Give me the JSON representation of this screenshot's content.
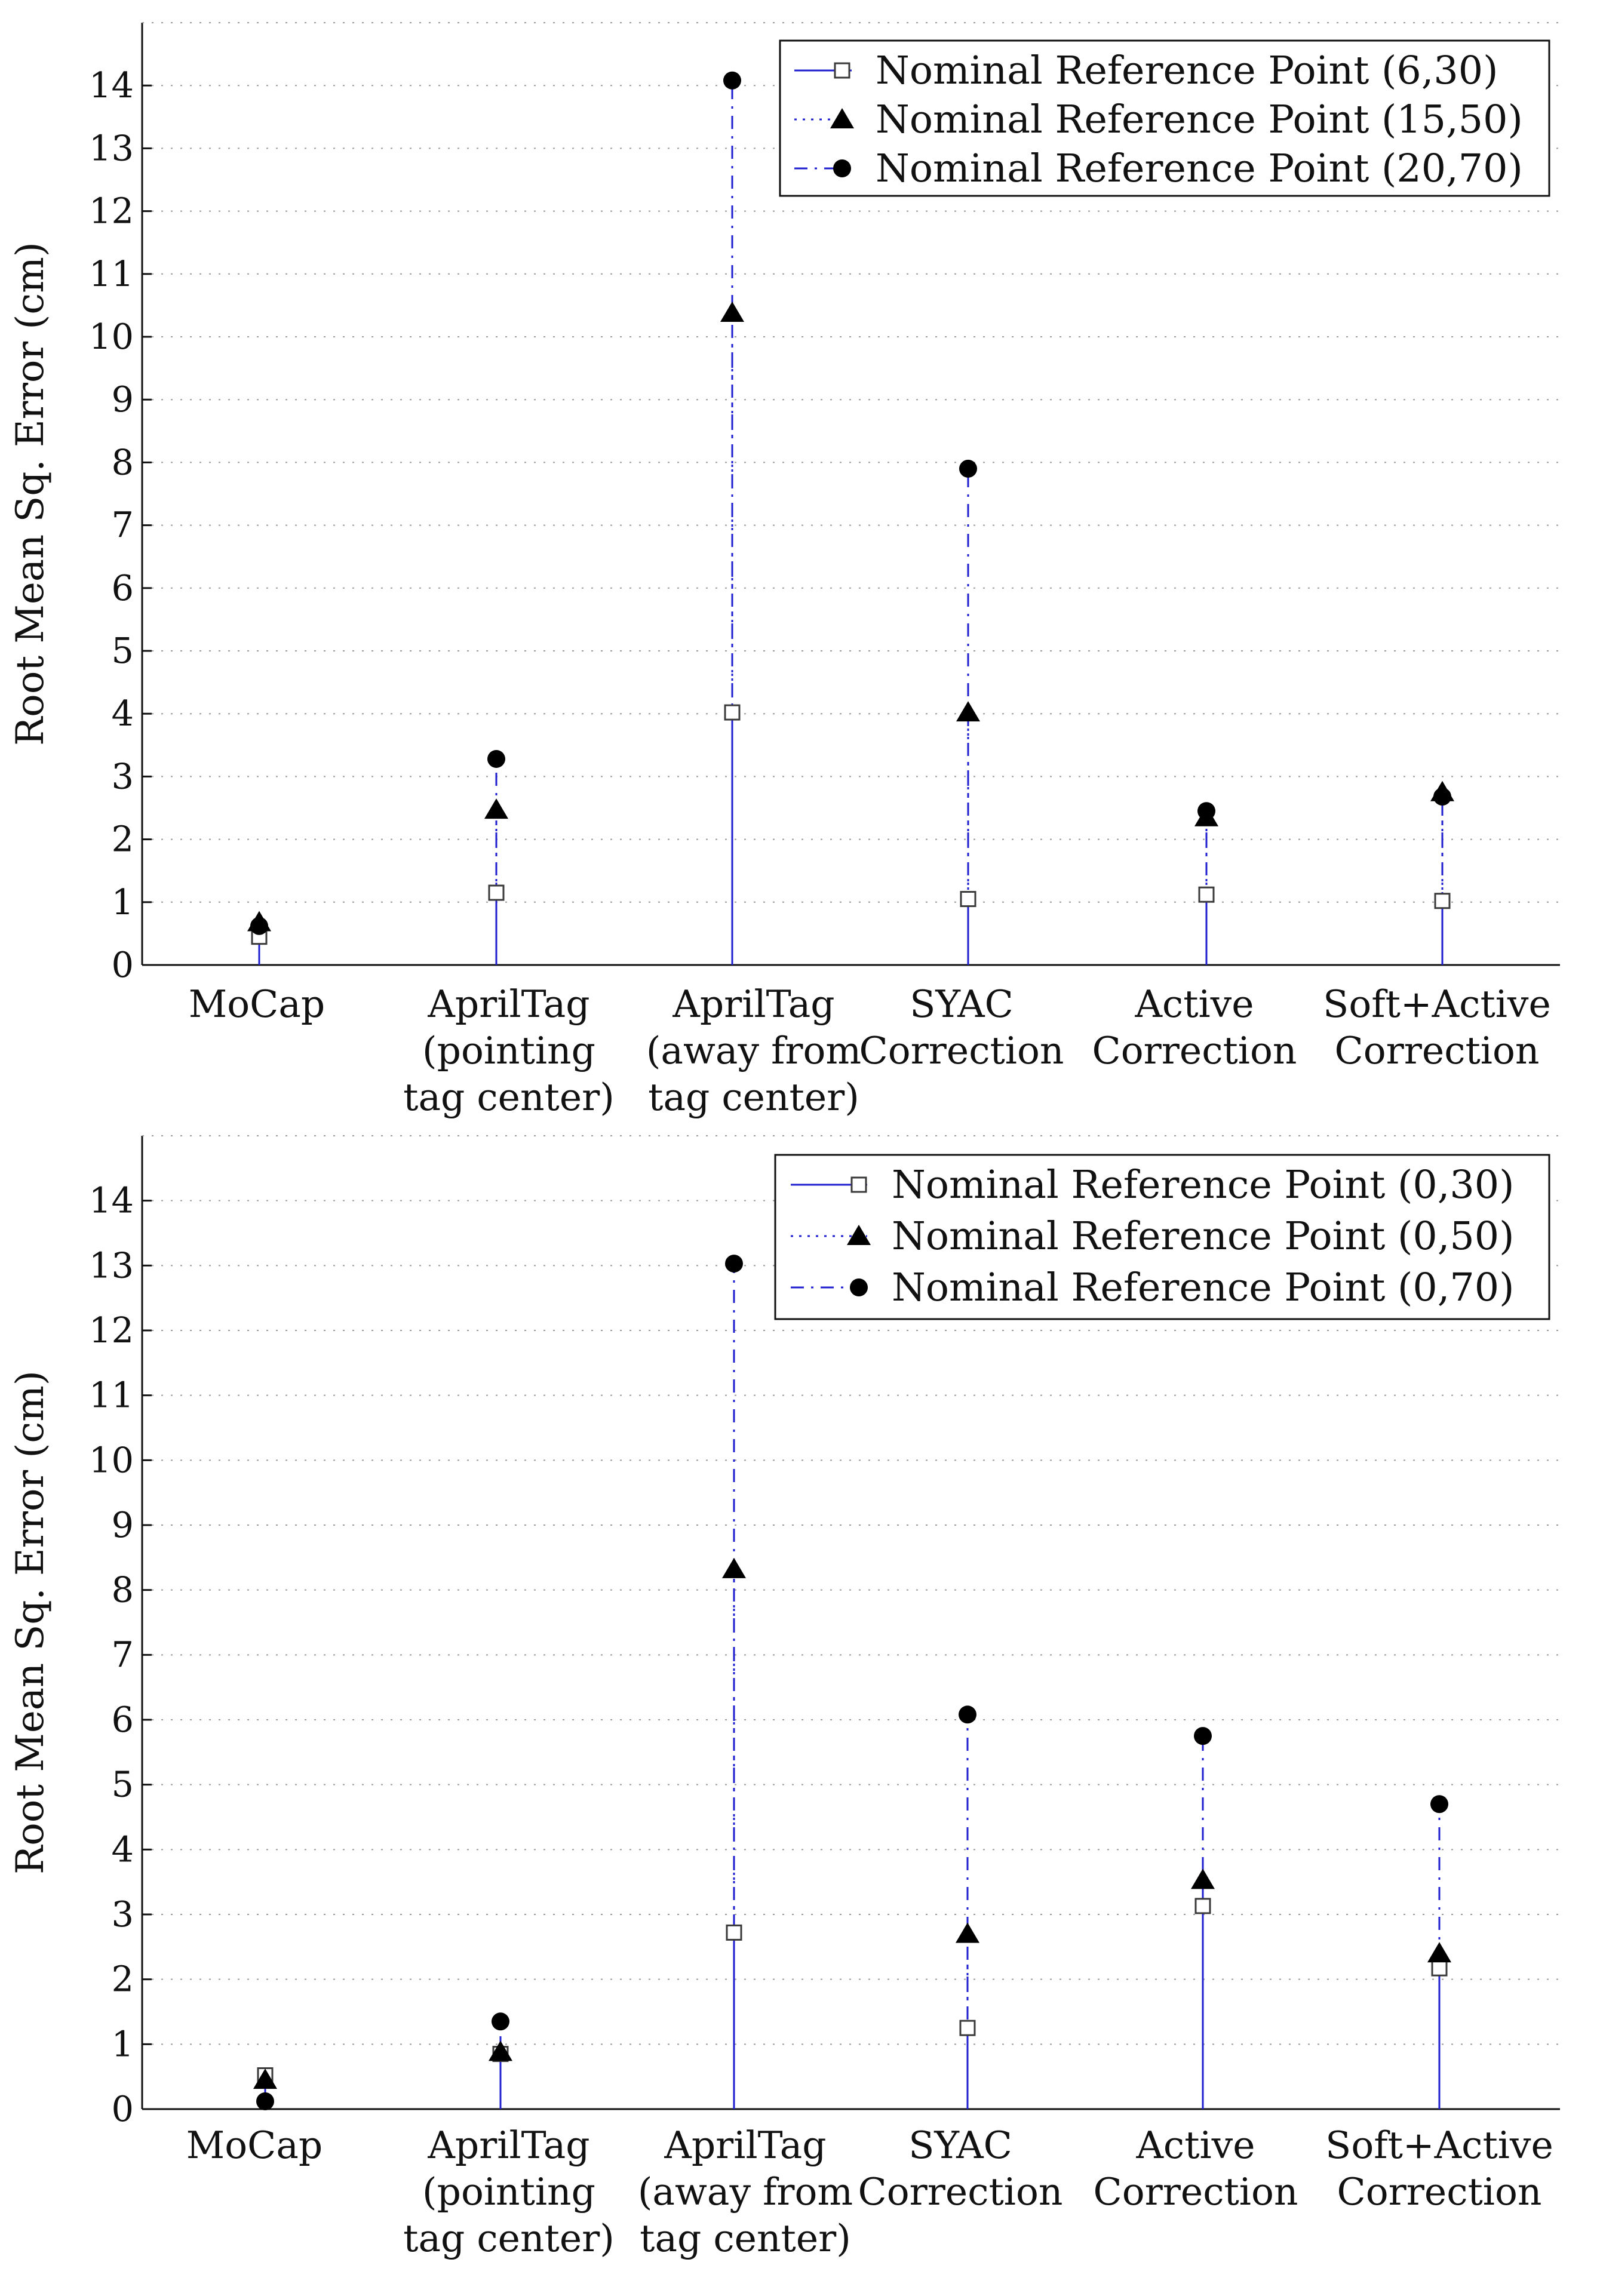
{
  "chart_data": [
    {
      "type": "stem",
      "title": "",
      "xlabel": "",
      "ylabel": "Root Mean Sq. Error (cm)",
      "ylim": [
        0,
        15
      ],
      "yticks": [
        "0",
        "1",
        "2",
        "3",
        "4",
        "5",
        "6",
        "7",
        "8",
        "9",
        "10",
        "11",
        "12",
        "13",
        "14"
      ],
      "grid": "horizontal dotted",
      "legend_position": "top-right",
      "categories": [
        [
          "MoCap"
        ],
        [
          "AprilTag",
          "(pointing",
          "tag center)"
        ],
        [
          "AprilTag",
          "(away from",
          "tag center)"
        ],
        [
          "SYAC",
          "Correction"
        ],
        [
          "Active",
          "Correction"
        ],
        [
          "Soft+Active",
          "Correction"
        ]
      ],
      "series": [
        {
          "name": "Nominal Reference Point (6,30)",
          "marker": "square",
          "line": "solid",
          "values": [
            0.45,
            1.15,
            4.02,
            1.05,
            1.12,
            1.02
          ]
        },
        {
          "name": "Nominal Reference Point (15,50)",
          "marker": "triangle",
          "line": "dotted",
          "values": [
            0.68,
            2.47,
            10.38,
            4.02,
            2.35,
            2.75
          ]
        },
        {
          "name": "Nominal Reference Point (20,70)",
          "marker": "circle",
          "line": "dash-dot",
          "values": [
            0.62,
            3.28,
            14.08,
            7.9,
            2.45,
            2.68
          ]
        }
      ]
    },
    {
      "type": "stem",
      "title": "",
      "xlabel": "",
      "ylabel": "Root Mean Sq. Error (cm)",
      "ylim": [
        0,
        15
      ],
      "yticks": [
        "0",
        "1",
        "2",
        "3",
        "4",
        "5",
        "6",
        "7",
        "8",
        "9",
        "10",
        "11",
        "12",
        "13",
        "14"
      ],
      "grid": "horizontal dotted",
      "legend_position": "top-right",
      "categories": [
        [
          "MoCap"
        ],
        [
          "AprilTag",
          "(pointing",
          "tag center)"
        ],
        [
          "AprilTag",
          "(away from",
          "tag center)"
        ],
        [
          "SYAC",
          "Correction"
        ],
        [
          "Active",
          "Correction"
        ],
        [
          "Soft+Active",
          "Correction"
        ]
      ],
      "series": [
        {
          "name": "Nominal Reference Point (0,30)",
          "marker": "square",
          "line": "solid",
          "values": [
            0.52,
            0.85,
            2.72,
            1.25,
            3.13,
            2.17
          ]
        },
        {
          "name": "Nominal Reference Point (0,50)",
          "marker": "triangle",
          "line": "dotted",
          "values": [
            0.45,
            0.88,
            8.32,
            2.7,
            3.53,
            2.4
          ]
        },
        {
          "name": "Nominal Reference Point (0,70)",
          "marker": "circle",
          "line": "dash-dot",
          "values": [
            0.12,
            1.35,
            13.03,
            6.08,
            5.75,
            4.7
          ]
        }
      ]
    }
  ],
  "colors": {
    "stem": "#1f1fd0",
    "marker": "#000000",
    "grid": "#9a9a9a",
    "axis": "#111111"
  }
}
